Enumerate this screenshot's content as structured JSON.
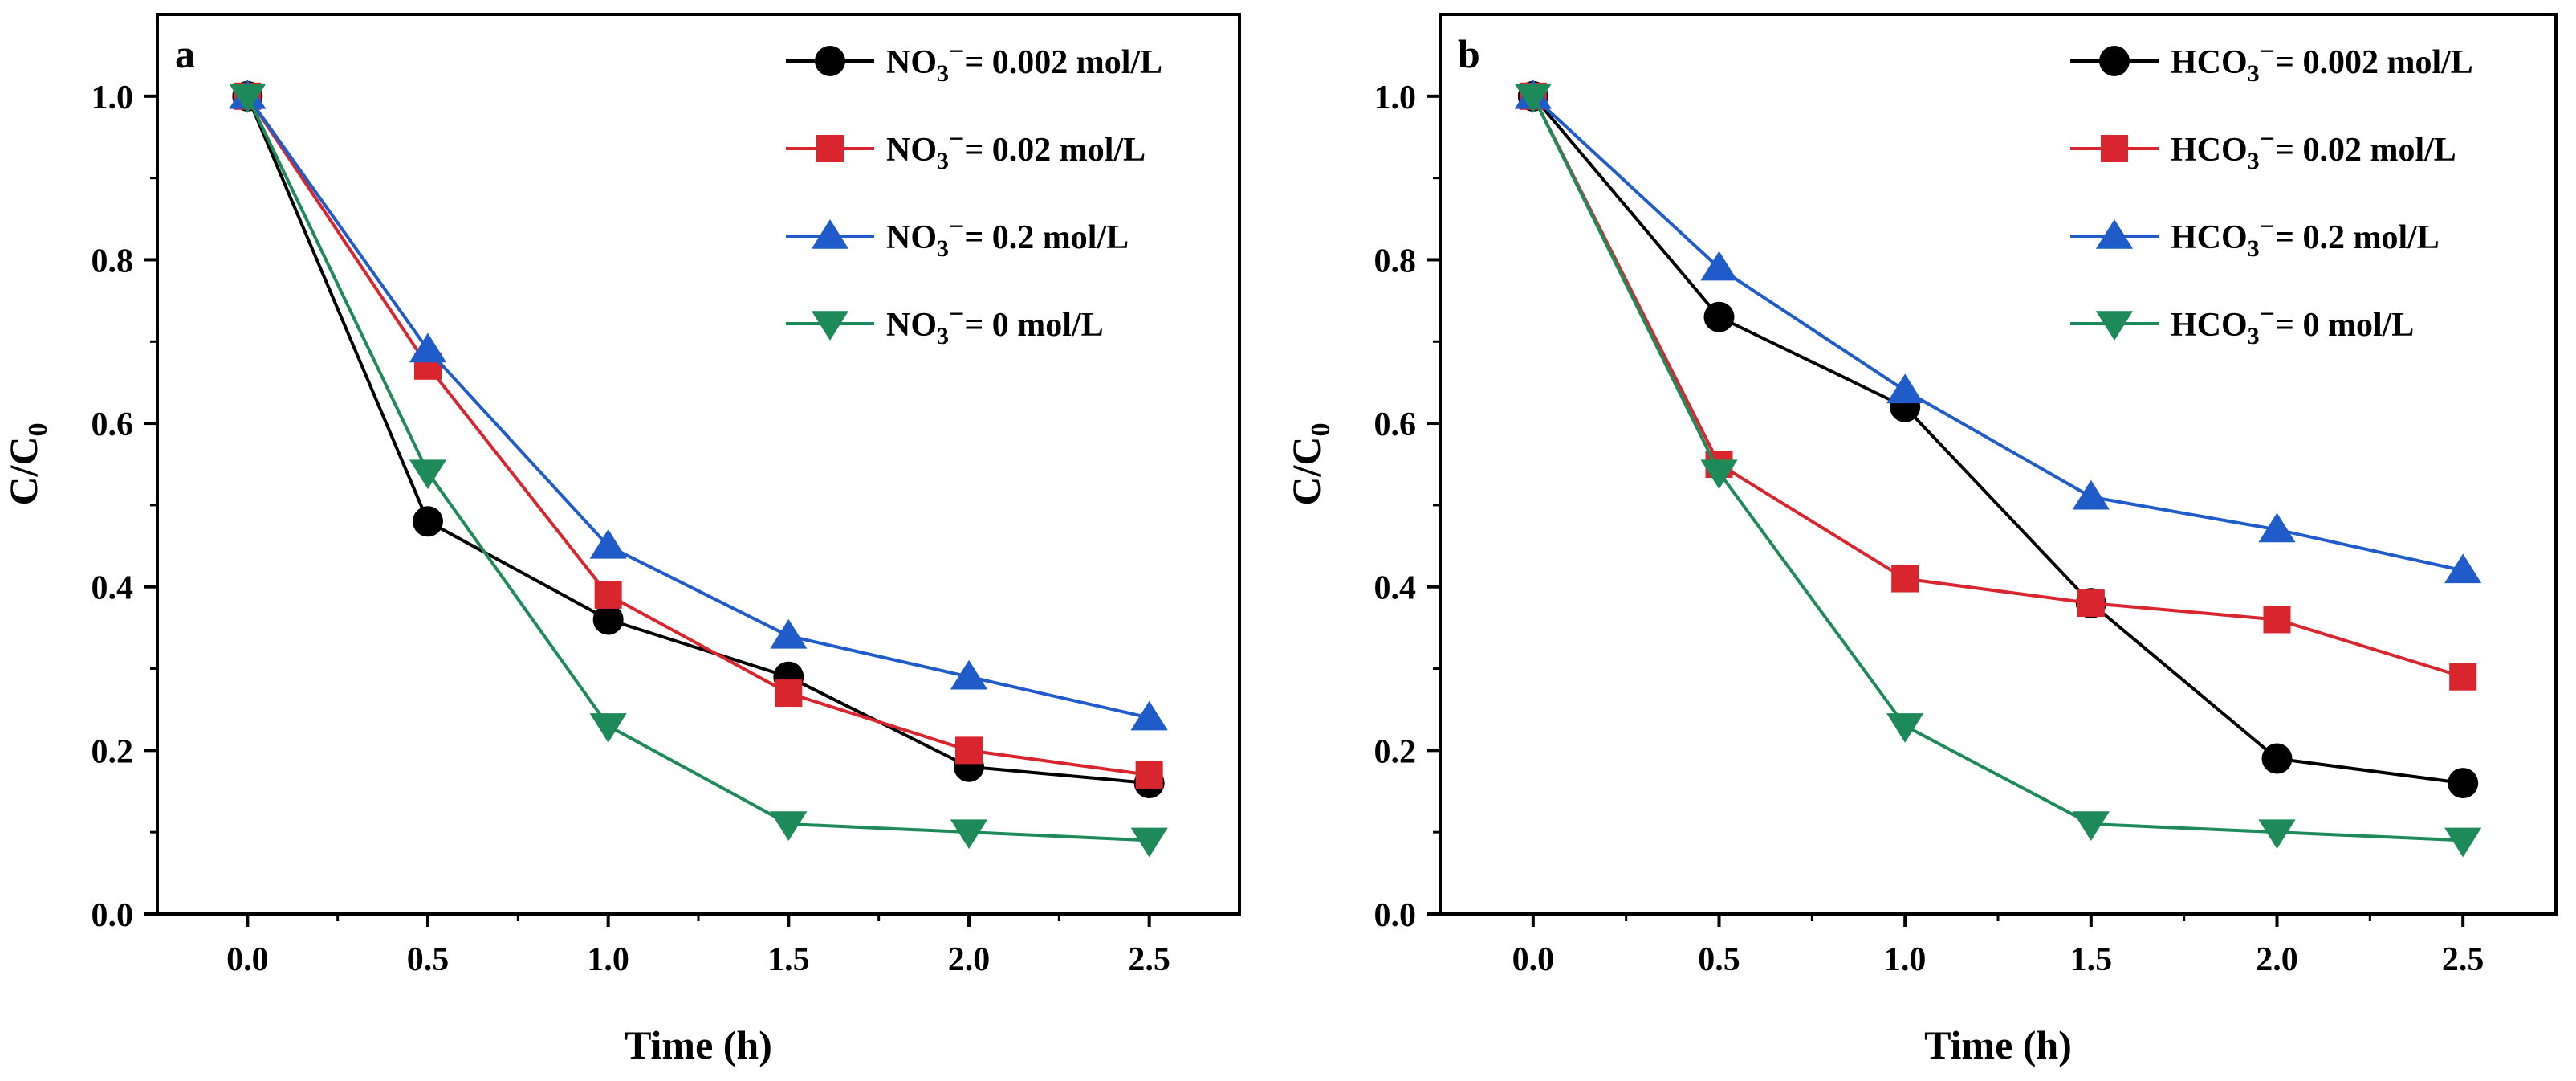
{
  "chart_data": [
    {
      "type": "line",
      "panel_label": "a",
      "xlabel": "Time (h)",
      "ylabel": "C/C0",
      "xlim": [
        -0.25,
        2.75
      ],
      "ylim": [
        0.0,
        1.1
      ],
      "x_ticks": [
        0.0,
        0.5,
        1.0,
        1.5,
        2.0,
        2.5
      ],
      "y_ticks": [
        0.0,
        0.2,
        0.4,
        0.6,
        0.8,
        1.0
      ],
      "x": [
        0.0,
        0.5,
        1.0,
        1.5,
        2.0,
        2.5
      ],
      "legend_position": "top-right",
      "grid": false,
      "series": [
        {
          "name": "NO3⁻= 0.002 mol/L",
          "values": [
            1.0,
            0.48,
            0.36,
            0.29,
            0.18,
            0.16
          ],
          "color": "#000000",
          "marker": "circle"
        },
        {
          "name": "NO3⁻= 0.02 mol/L",
          "values": [
            1.0,
            0.67,
            0.39,
            0.27,
            0.2,
            0.17
          ],
          "color": "#d9262e",
          "marker": "square"
        },
        {
          "name": "NO3⁻= 0.2 mol/L",
          "values": [
            1.0,
            0.69,
            0.45,
            0.34,
            0.29,
            0.24
          ],
          "color": "#1f5cc9",
          "marker": "triangle-up"
        },
        {
          "name": "NO3⁻= 0 mol/L",
          "values": [
            1.0,
            0.54,
            0.23,
            0.11,
            0.1,
            0.09
          ],
          "color": "#1e8a5a",
          "marker": "triangle-down"
        }
      ]
    },
    {
      "type": "line",
      "panel_label": "b",
      "xlabel": "Time (h)",
      "ylabel": "C/C0",
      "xlim": [
        -0.25,
        2.75
      ],
      "ylim": [
        0.0,
        1.1
      ],
      "x_ticks": [
        0.0,
        0.5,
        1.0,
        1.5,
        2.0,
        2.5
      ],
      "y_ticks": [
        0.0,
        0.2,
        0.4,
        0.6,
        0.8,
        1.0
      ],
      "x": [
        0.0,
        0.5,
        1.0,
        1.5,
        2.0,
        2.5
      ],
      "legend_position": "top-right",
      "grid": false,
      "series": [
        {
          "name": "HCO3⁻= 0.002 mol/L",
          "values": [
            1.0,
            0.73,
            0.62,
            0.38,
            0.19,
            0.16
          ],
          "color": "#000000",
          "marker": "circle"
        },
        {
          "name": "HCO3⁻= 0.02 mol/L",
          "values": [
            1.0,
            0.55,
            0.41,
            0.38,
            0.36,
            0.29
          ],
          "color": "#d9262e",
          "marker": "square"
        },
        {
          "name": "HCO3⁻= 0.2 mol/L",
          "values": [
            1.0,
            0.79,
            0.64,
            0.51,
            0.47,
            0.42
          ],
          "color": "#1f5cc9",
          "marker": "triangle-up"
        },
        {
          "name": "HCO3⁻= 0 mol/L",
          "values": [
            1.0,
            0.54,
            0.23,
            0.11,
            0.1,
            0.09
          ],
          "color": "#1e8a5a",
          "marker": "triangle-down"
        }
      ]
    }
  ]
}
